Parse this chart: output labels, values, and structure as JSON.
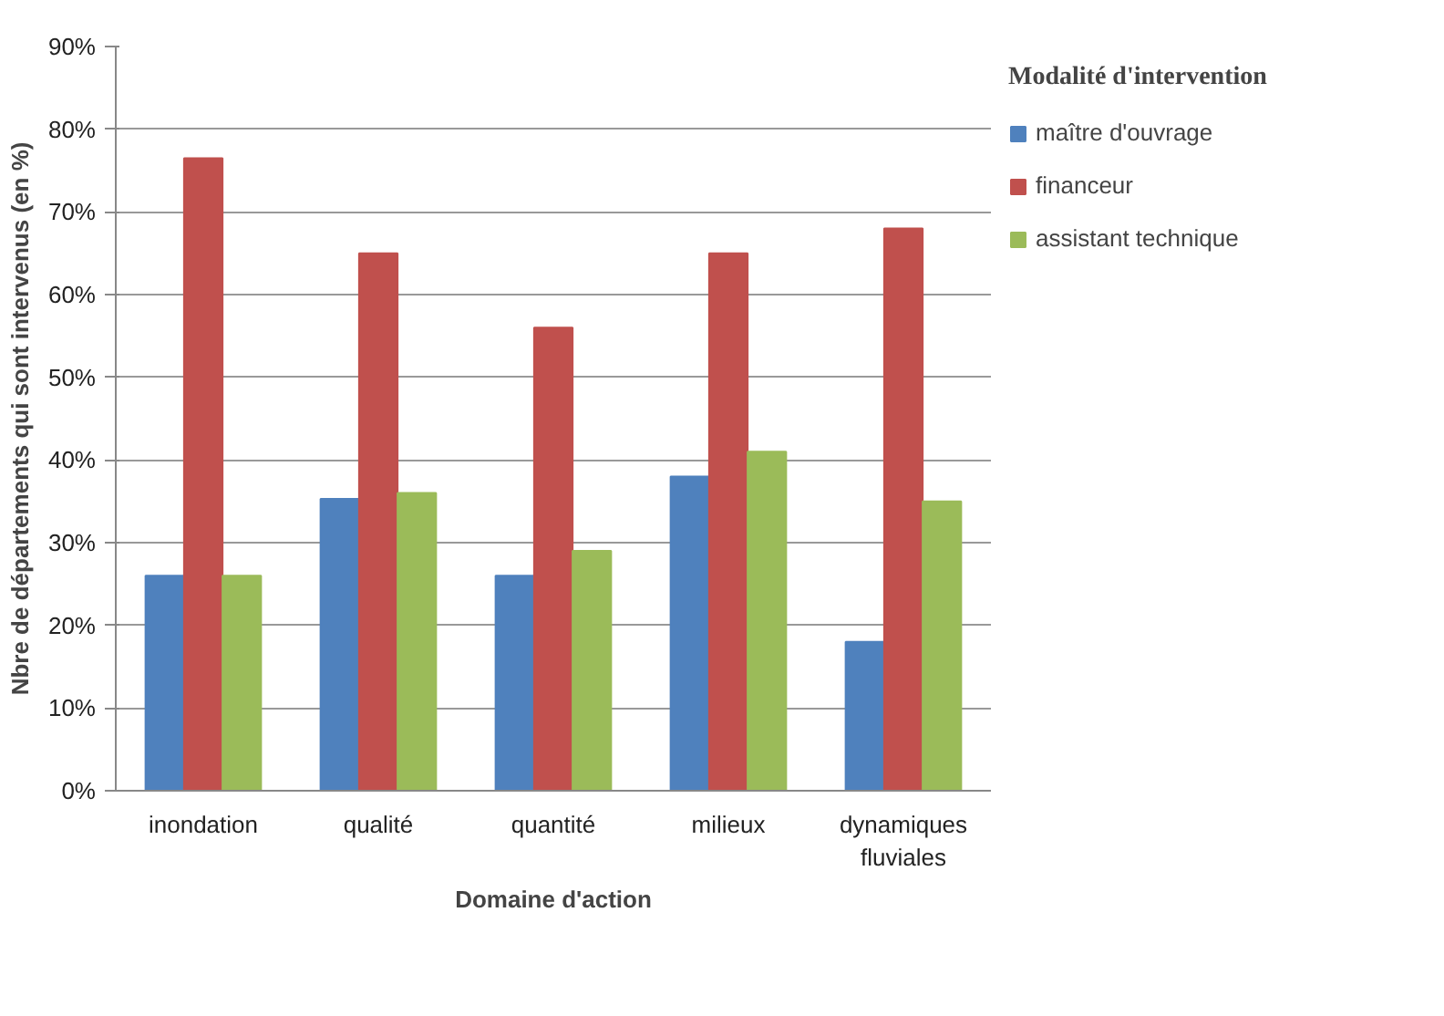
{
  "chart_data": {
    "type": "bar",
    "xlabel": "Domaine d'action",
    "ylabel": "Nbre de départements qui sont intervenus (en %)",
    "legend_title": "Modalité d'intervention",
    "categories": [
      "inondation",
      "qualité",
      "quantité",
      "milieux",
      "dynamiques fluviales"
    ],
    "series": [
      {
        "name": "maître d'ouvrage",
        "color": "#4f81bd",
        "values": [
          26,
          35.3,
          26,
          38,
          18
        ]
      },
      {
        "name": "financeur",
        "color": "#c0504d",
        "values": [
          76.5,
          65,
          56,
          65,
          68
        ]
      },
      {
        "name": "assistant technique",
        "color": "#9bbb59",
        "values": [
          26,
          36,
          29,
          41,
          35
        ]
      }
    ],
    "ylim": [
      0,
      90
    ],
    "yticks": [
      {
        "value": 0,
        "label": "0%"
      },
      {
        "value": 10,
        "label": "10%"
      },
      {
        "value": 20,
        "label": "20%"
      },
      {
        "value": 30,
        "label": "30%"
      },
      {
        "value": 40,
        "label": "40%"
      },
      {
        "value": 50,
        "label": "50%"
      },
      {
        "value": 60,
        "label": "60%"
      },
      {
        "value": 70,
        "label": "70%"
      },
      {
        "value": 80,
        "label": "80%"
      },
      {
        "value": 90,
        "label": "90%"
      }
    ],
    "grid": "y",
    "legend": "right"
  }
}
